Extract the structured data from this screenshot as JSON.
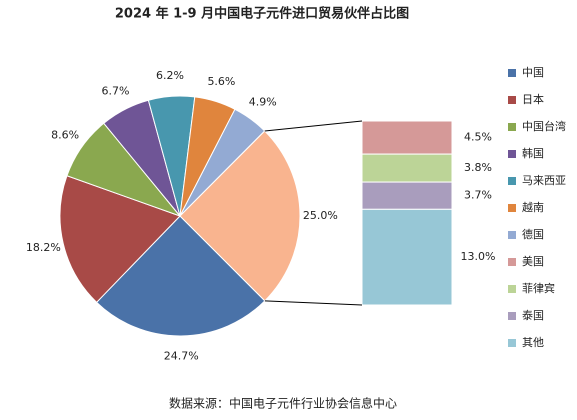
{
  "chart_data": {
    "type": "bar-of-pie",
    "title": "2024 年 1-9 月中国电子元件进口贸易伙伴占比图",
    "source": "数据来源：中国电子元件行业协会信息中心",
    "pie": {
      "categories": [
        "中国",
        "日本",
        "中国台湾",
        "韩国",
        "马来西亚",
        "越南",
        "德国",
        null
      ],
      "values": [
        24.7,
        18.2,
        8.6,
        6.7,
        6.2,
        5.6,
        4.9,
        25.0
      ],
      "value_labels": [
        "24.7%",
        "18.2%",
        "8.6%",
        "6.7%",
        "6.2%",
        "5.6%",
        "4.9%",
        "25.0%"
      ],
      "colors": [
        "#4a72a8",
        "#a84a47",
        "#8aa84f",
        "#6f5596",
        "#4897ae",
        "#e0853d",
        "#93aad3",
        "#f9b48f"
      ]
    },
    "bar": {
      "categories": [
        "美国",
        "菲律宾",
        "泰国",
        "其他"
      ],
      "values": [
        4.5,
        3.8,
        3.7,
        13.0
      ],
      "value_labels": [
        "4.5%",
        "3.8%",
        "3.7%",
        "13.0%"
      ],
      "colors": [
        "#d59998",
        "#bcd497",
        "#a99dbd",
        "#97c7d6"
      ]
    }
  }
}
